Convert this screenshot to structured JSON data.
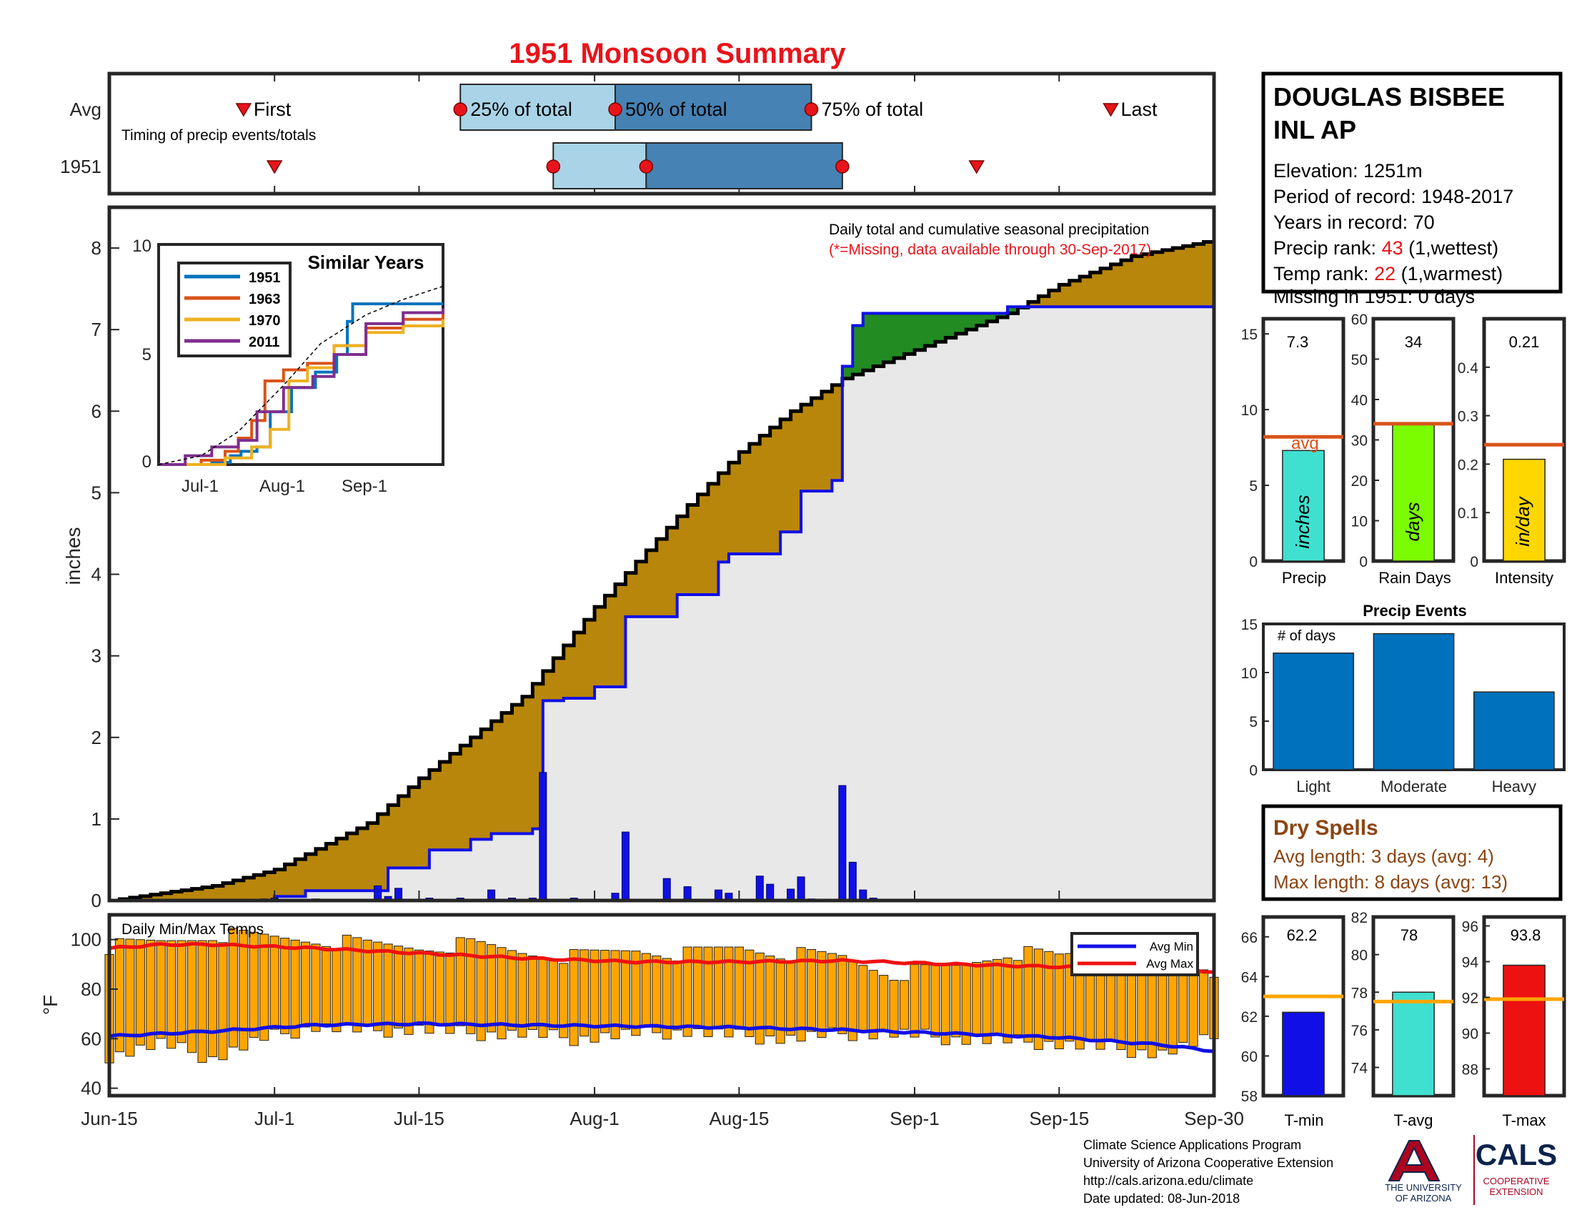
{
  "title": "1951 Monsoon Summary",
  "colors": {
    "title": "#e8141b",
    "frame": "#262626",
    "cum_avg": "#000000",
    "cum_year": "#1010e6",
    "deficit": "#b8860b",
    "surplus": "#228b22",
    "background_fill": "#e8e8e8",
    "daily_bar": "#1010e6",
    "temp_bar": "#ffa500",
    "avg_min_line": "#1010e6",
    "avg_max_line": "#ee1111",
    "avg_marker_line": "#d95319",
    "temp_avg_marker": "#ffa500",
    "box_light": "#a9d4e8",
    "box_dark": "#4682b4",
    "dry_spells": "#8b4513",
    "marker": "#e8141b"
  },
  "timing": {
    "row_labels": [
      "Avg",
      "1951"
    ],
    "subtitle": "Timing of precip events/totals",
    "avg_labels": {
      "first": "First",
      "p25": "25% of total",
      "p50": "50% of total",
      "p75": "75% of total",
      "last": "Last"
    },
    "avg": {
      "first": "2018-06-28",
      "p25": "2018-07-19",
      "p50": "2018-08-03",
      "p75": "2018-08-22",
      "last": "2018-09-20"
    },
    "year": {
      "first": "2018-07-01",
      "p25": "2018-07-28",
      "p50": "2018-08-06",
      "p75": "2018-08-25",
      "last": "2018-09-07"
    }
  },
  "station": {
    "name_line1": "DOUGLAS BISBEE",
    "name_line2": "INL AP",
    "elevation": "Elevation: 1251m",
    "period": "Period of record: 1948-2017",
    "years": "Years in record: 70",
    "precip_rank_label": "Precip rank: ",
    "precip_rank_value": "43",
    "precip_rank_suffix": " (1,wettest)",
    "temp_rank_label": "Temp rank: ",
    "temp_rank_value": "22",
    "temp_rank_suffix": " (1,warmest)",
    "missing": "Missing in 1951: 0 days"
  },
  "main": {
    "heading": "Daily total and cumulative seasonal precipitation",
    "note": "(*=Missing, data available through 30-Sep-2017)",
    "ylabel": "inches",
    "y_ticks": [
      "0",
      "1",
      "2",
      "3",
      "4",
      "5",
      "6",
      "7",
      "8"
    ]
  },
  "x_ticks": [
    "Jun-15",
    "Jul-1",
    "Jul-15",
    "Aug-1",
    "Aug-15",
    "Sep-1",
    "Sep-15",
    "Sep-30"
  ],
  "inset": {
    "title": "Similar Years",
    "x_ticks": [
      "Jul-1",
      "Aug-1",
      "Sep-1"
    ],
    "y_ticks": [
      "0",
      "5",
      "10"
    ],
    "legend": [
      "1951",
      "1963",
      "1970",
      "2011"
    ]
  },
  "stat_panels": {
    "precip": {
      "value": "7.3",
      "unit": "inches",
      "label": "Precip",
      "avg_label": "avg",
      "ticks": [
        "0",
        "5",
        "10",
        "15"
      ]
    },
    "rain_days": {
      "value": "34",
      "unit": "days",
      "label": "Rain Days",
      "ticks": [
        "0",
        "10",
        "20",
        "30",
        "40",
        "50",
        "60"
      ]
    },
    "intensity": {
      "value": "0.21",
      "unit": "in/day",
      "label": "Intensity",
      "ticks": [
        "0",
        "0.1",
        "0.2",
        "0.3",
        "0.4"
      ]
    }
  },
  "events": {
    "title": "Precip Events",
    "note": "# of days",
    "categories": [
      "Light",
      "Moderate",
      "Heavy"
    ],
    "ticks": [
      "0",
      "5",
      "10",
      "15"
    ]
  },
  "dry_spells": {
    "title": "Dry Spells",
    "avg_length": "Avg length: 3 days (avg: 4)",
    "max_length": "Max length: 8 days (avg: 13)"
  },
  "temps": {
    "label": "Daily Min/Max Temps",
    "ylabel": "°F",
    "y_ticks": [
      "40",
      "60",
      "80",
      "100"
    ],
    "legend": [
      "Avg Min",
      "Avg Max"
    ]
  },
  "temp_panels": {
    "tmin": {
      "value": "62.2",
      "label": "T-min",
      "ticks": [
        "58",
        "60",
        "62",
        "64",
        "66"
      ]
    },
    "tavg": {
      "value": "78",
      "label": "T-avg",
      "ticks": [
        "74",
        "76",
        "78",
        "80",
        "82"
      ]
    },
    "tmax": {
      "value": "93.8",
      "label": "T-max",
      "ticks": [
        "88",
        "90",
        "92",
        "94",
        "96"
      ]
    }
  },
  "footer": {
    "line1": "Climate Science Applications Program",
    "line2": "University of Arizona Cooperative Extension",
    "line3": "http://cals.arizona.edu/climate",
    "line4": " Date updated: 08-Jun-2018",
    "logo_text_ua1": "THE UNIVERSITY",
    "logo_text_ua2": "OF ARIZONA",
    "logo_text_cals": "CALS",
    "logo_text_coop1": "COOPERATIVE",
    "logo_text_coop2": "EXTENSION"
  },
  "chart_data": [
    {
      "type": "line",
      "title": "Daily total and cumulative seasonal precipitation",
      "ylabel": "inches",
      "ylim": [
        0,
        8.5
      ],
      "xlim": [
        "2018-06-15",
        "2018-09-30"
      ],
      "series": [
        {
          "kind": "average cumulative",
          "x": [
            "2018-06-15",
            "2018-06-25",
            "2018-07-01",
            "2018-07-10",
            "2018-07-15",
            "2018-07-25",
            "2018-08-01",
            "2018-08-10",
            "2018-08-15",
            "2018-08-20",
            "2018-08-25",
            "2018-09-01",
            "2018-09-10",
            "2018-09-15",
            "2018-09-22",
            "2018-09-30"
          ],
          "values": [
            0,
            0.18,
            0.38,
            0.95,
            1.5,
            2.5,
            3.6,
            4.85,
            5.5,
            6.0,
            6.4,
            6.75,
            7.2,
            7.55,
            7.9,
            8.1
          ]
        },
        {
          "kind": "1951 cumulative",
          "x": [
            "2018-06-15",
            "2018-06-30",
            "2018-07-01",
            "2018-07-04",
            "2018-07-09",
            "2018-07-12",
            "2018-07-16",
            "2018-07-20",
            "2018-07-22",
            "2018-07-26",
            "2018-07-27",
            "2018-07-29",
            "2018-08-01",
            "2018-08-04",
            "2018-08-09",
            "2018-08-13",
            "2018-08-14",
            "2018-08-19",
            "2018-08-21",
            "2018-08-24",
            "2018-08-25",
            "2018-08-26",
            "2018-08-27",
            "2018-09-10",
            "2018-09-30"
          ],
          "values": [
            0,
            0,
            0.05,
            0.12,
            0.12,
            0.4,
            0.62,
            0.75,
            0.82,
            0.88,
            2.45,
            2.48,
            2.62,
            3.48,
            3.75,
            4.15,
            4.25,
            4.52,
            5.02,
            5.15,
            6.55,
            7.05,
            7.2,
            7.28,
            7.3
          ]
        },
        {
          "kind": "1951 daily precip",
          "x": [
            "2018-06-30",
            "2018-07-01",
            "2018-07-05",
            "2018-07-11",
            "2018-07-12",
            "2018-07-13",
            "2018-07-16",
            "2018-07-19",
            "2018-07-22",
            "2018-07-24",
            "2018-07-26",
            "2018-07-27",
            "2018-07-30",
            "2018-08-03",
            "2018-08-04",
            "2018-08-08",
            "2018-08-10",
            "2018-08-13",
            "2018-08-14",
            "2018-08-17",
            "2018-08-18",
            "2018-08-20",
            "2018-08-21",
            "2018-08-22",
            "2018-08-25",
            "2018-08-26",
            "2018-08-27",
            "2018-08-28"
          ],
          "values": [
            0.02,
            0.03,
            0.02,
            0.18,
            0.05,
            0.15,
            0.03,
            0.03,
            0.13,
            0.03,
            0.03,
            1.57,
            0.03,
            0.09,
            0.84,
            0.27,
            0.17,
            0.13,
            0.09,
            0.3,
            0.2,
            0.14,
            0.29,
            0.02,
            1.41,
            0.47,
            0.13,
            0.03
          ]
        }
      ]
    },
    {
      "type": "line",
      "title": "Similar Years",
      "ylim": [
        0,
        10
      ],
      "xlim": [
        "2018-06-15",
        "2018-09-30"
      ],
      "series": [
        {
          "name": "1951",
          "x": [
            "2018-06-15",
            "2018-06-30",
            "2018-07-05",
            "2018-07-12",
            "2018-07-16",
            "2018-07-22",
            "2018-07-27",
            "2018-08-04",
            "2018-08-13",
            "2018-08-21",
            "2018-08-25",
            "2018-08-27",
            "2018-09-30"
          ],
          "values": [
            0,
            0,
            0.1,
            0.4,
            0.6,
            0.8,
            2.4,
            3.5,
            4.2,
            5.0,
            6.5,
            7.3,
            7.3
          ]
        },
        {
          "name": "1963",
          "x": [
            "2018-06-15",
            "2018-07-01",
            "2018-07-10",
            "2018-07-15",
            "2018-07-20",
            "2018-07-25",
            "2018-08-01",
            "2018-08-10",
            "2018-08-20",
            "2018-09-01",
            "2018-09-15",
            "2018-09-30"
          ],
          "values": [
            0,
            0.2,
            0.6,
            1.2,
            2.0,
            3.8,
            4.3,
            4.6,
            5.4,
            6.2,
            6.6,
            7.0
          ]
        },
        {
          "name": "1970",
          "x": [
            "2018-06-15",
            "2018-07-01",
            "2018-07-10",
            "2018-07-20",
            "2018-07-27",
            "2018-08-03",
            "2018-08-10",
            "2018-08-20",
            "2018-09-01",
            "2018-09-15",
            "2018-09-30"
          ],
          "values": [
            0,
            0,
            0.3,
            0.8,
            1.6,
            3.8,
            4.4,
            5.4,
            6.0,
            6.3,
            6.6
          ]
        },
        {
          "name": "2011",
          "x": [
            "2018-06-15",
            "2018-06-25",
            "2018-07-05",
            "2018-07-15",
            "2018-07-22",
            "2018-08-01",
            "2018-08-12",
            "2018-08-20",
            "2018-09-01",
            "2018-09-15",
            "2018-09-30"
          ],
          "values": [
            0,
            0.4,
            0.8,
            1.1,
            2.4,
            3.5,
            4.0,
            5.0,
            6.4,
            6.9,
            7.1
          ]
        },
        {
          "kind": "average",
          "x": [
            "2018-06-15",
            "2018-07-01",
            "2018-07-15",
            "2018-08-01",
            "2018-08-15",
            "2018-09-01",
            "2018-09-15",
            "2018-09-30"
          ],
          "values": [
            0,
            0.4,
            1.5,
            3.6,
            5.5,
            6.8,
            7.5,
            8.1
          ]
        }
      ]
    },
    {
      "type": "bar",
      "title": "Precip",
      "categories": [
        "Precip"
      ],
      "values": [
        7.3
      ],
      "average": 8.2,
      "ylim": [
        0,
        16
      ]
    },
    {
      "type": "bar",
      "title": "Rain Days",
      "categories": [
        "Rain Days"
      ],
      "values": [
        34
      ],
      "average": 34,
      "ylim": [
        0,
        60
      ]
    },
    {
      "type": "bar",
      "title": "Intensity",
      "categories": [
        "Intensity"
      ],
      "values": [
        0.21
      ],
      "average": 0.24,
      "ylim": [
        0,
        0.5
      ]
    },
    {
      "type": "bar",
      "title": "Precip Events",
      "categories": [
        "Light",
        "Moderate",
        "Heavy"
      ],
      "values": [
        12,
        14,
        8
      ],
      "ylim": [
        0,
        15
      ]
    },
    {
      "type": "bar",
      "title": "Daily Min/Max Temps",
      "ylabel": "°F",
      "ylim": [
        37,
        110
      ],
      "xlim": [
        "2018-06-15",
        "2018-09-30"
      ],
      "series": [
        {
          "name": "Avg Min",
          "x": [
            "2018-06-15",
            "2018-06-25",
            "2018-07-05",
            "2018-07-15",
            "2018-07-25",
            "2018-08-05",
            "2018-08-15",
            "2018-08-25",
            "2018-09-05",
            "2018-09-15",
            "2018-09-25",
            "2018-09-30"
          ],
          "values": [
            61,
            63,
            65.5,
            66,
            65.5,
            65,
            64.5,
            63.5,
            62,
            60.5,
            57.5,
            55
          ]
        },
        {
          "name": "Avg Max",
          "x": [
            "2018-06-15",
            "2018-06-20",
            "2018-06-25",
            "2018-07-05",
            "2018-07-15",
            "2018-07-25",
            "2018-08-05",
            "2018-08-15",
            "2018-08-25",
            "2018-09-05",
            "2018-09-15",
            "2018-09-25",
            "2018-09-30"
          ],
          "values": [
            96.5,
            98,
            98,
            96.5,
            94.5,
            92.5,
            91,
            91,
            91.5,
            90,
            89,
            88.5,
            87
          ]
        },
        {
          "kind": "daily max",
          "x": [
            "2018-06-15",
            "2018-06-20",
            "2018-06-25",
            "2018-06-30",
            "2018-07-05",
            "2018-07-10",
            "2018-07-15",
            "2018-07-20",
            "2018-07-25",
            "2018-07-30",
            "2018-08-05",
            "2018-08-10",
            "2018-08-15",
            "2018-08-20",
            "2018-08-25",
            "2018-08-30",
            "2018-09-05",
            "2018-09-10",
            "2018-09-15",
            "2018-09-20",
            "2018-09-25",
            "2018-09-30"
          ],
          "values": [
            97,
            99,
            102,
            101,
            100,
            98,
            97,
            98,
            95,
            93,
            96,
            94,
            97,
            94,
            93,
            86,
            89,
            95,
            93,
            97,
            98,
            86
          ]
        },
        {
          "kind": "daily min",
          "x": [
            "2018-06-15",
            "2018-06-20",
            "2018-06-25",
            "2018-06-30",
            "2018-07-05",
            "2018-07-10",
            "2018-07-15",
            "2018-07-20",
            "2018-07-25",
            "2018-07-30",
            "2018-08-05",
            "2018-08-10",
            "2018-08-15",
            "2018-08-20",
            "2018-08-25",
            "2018-08-30",
            "2018-09-05",
            "2018-09-10",
            "2018-09-15",
            "2018-09-20",
            "2018-09-25",
            "2018-09-30"
          ],
          "values": [
            53,
            58,
            52,
            60,
            65,
            63,
            64,
            62,
            62,
            60,
            62,
            63,
            61,
            60,
            62,
            62,
            60,
            59,
            58,
            56,
            54,
            60
          ]
        }
      ]
    },
    {
      "type": "bar",
      "title": "Temperature summary",
      "categories": [
        "T-min",
        "T-avg",
        "T-max"
      ],
      "values": [
        62.2,
        78,
        93.8
      ],
      "averages": [
        63,
        77.5,
        91.9
      ],
      "ylims": [
        [
          58,
          67
        ],
        [
          72.5,
          82
        ],
        [
          86.5,
          96.5
        ]
      ]
    }
  ]
}
